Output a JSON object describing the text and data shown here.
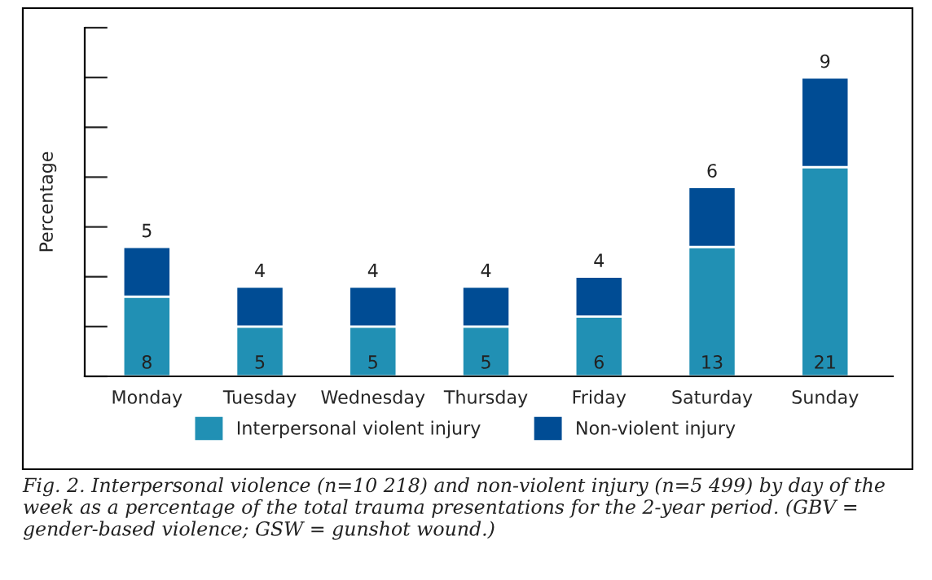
{
  "chart_data": {
    "type": "bar",
    "stacked": true,
    "ylabel": "Percentage",
    "categories": [
      "Monday",
      "Tuesday",
      "Wednesday",
      "Thursday",
      "Friday",
      "Saturday",
      "Sunday"
    ],
    "series": [
      {
        "name": "Interpersonal violent injury",
        "color": "#2190b4",
        "values": [
          8,
          5,
          5,
          5,
          6,
          13,
          21
        ]
      },
      {
        "name": "Non-violent injury",
        "color": "#004c94",
        "values": [
          5,
          4,
          4,
          4,
          4,
          6,
          9
        ]
      }
    ],
    "ylim": [
      0,
      35
    ],
    "yticks": [
      {
        "value": 0,
        "label": null
      },
      {
        "value": 5,
        "label": null
      },
      {
        "value": 10,
        "label": null
      },
      {
        "value": 15,
        "label": null
      },
      {
        "value": 20,
        "label": null
      },
      {
        "value": 25,
        "label": null
      },
      {
        "value": 30,
        "label": null
      },
      {
        "value": 35,
        "label": null
      }
    ],
    "data_labels": true,
    "legend": "bottom",
    "grid": false,
    "annotations": [
      "Fig. 2. Interpersonal violence (n=10 218) and non-violent injury (n=5 499) by day of the week as a percentage of the total trauma presentations for the 2-year period. (GBV = gender-based violence; GSW = gunshot wound.)"
    ]
  }
}
